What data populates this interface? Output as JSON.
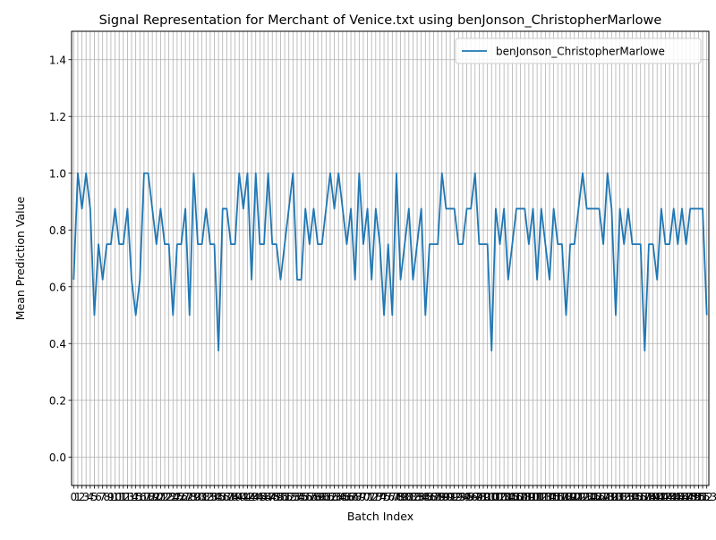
{
  "chart_data": {
    "type": "line",
    "title": "Signal Representation for Merchant of Venice.txt using benJonson_ChristopherMarlowe",
    "xlabel": "Batch Index",
    "ylabel": "Mean Prediction Value",
    "ylim": [
      -0.1,
      1.5
    ],
    "xlim": [
      -0.5,
      153.5
    ],
    "yticks": [
      "0.0",
      "0.2",
      "0.4",
      "0.6",
      "0.8",
      "1.0",
      "1.2",
      "1.4"
    ],
    "ytick_values": [
      0.0,
      0.2,
      0.4,
      0.6,
      0.8,
      1.0,
      1.2,
      1.4
    ],
    "grid": true,
    "legend_position": "top-right",
    "line_color": "#1f77b4",
    "series": [
      {
        "name": "benJonson_ChristopherMarlowe",
        "values": [
          0.625,
          1.0,
          0.875,
          1.0,
          0.875,
          0.5,
          0.75,
          0.625,
          0.75,
          0.75,
          0.875,
          0.75,
          0.75,
          0.875,
          0.625,
          0.5,
          0.625,
          1.0,
          1.0,
          0.875,
          0.75,
          0.875,
          0.75,
          0.75,
          0.5,
          0.75,
          0.75,
          0.875,
          0.5,
          1.0,
          0.75,
          0.75,
          0.875,
          0.75,
          0.75,
          0.375,
          0.875,
          0.875,
          0.75,
          0.75,
          1.0,
          0.875,
          1.0,
          0.625,
          1.0,
          0.75,
          0.75,
          1.0,
          0.75,
          0.75,
          0.625,
          0.75,
          0.875,
          1.0,
          0.625,
          0.625,
          0.875,
          0.75,
          0.875,
          0.75,
          0.75,
          0.875,
          1.0,
          0.875,
          1.0,
          0.875,
          0.75,
          0.875,
          0.625,
          1.0,
          0.75,
          0.875,
          0.625,
          0.875,
          0.75,
          0.5,
          0.75,
          0.5,
          1.0,
          0.625,
          0.75,
          0.875,
          0.625,
          0.75,
          0.875,
          0.5,
          0.75,
          0.75,
          0.75,
          1.0,
          0.875,
          0.875,
          0.875,
          0.75,
          0.75,
          0.875,
          0.875,
          1.0,
          0.75,
          0.75,
          0.75,
          0.375,
          0.875,
          0.75,
          0.875,
          0.625,
          0.75,
          0.875,
          0.875,
          0.875,
          0.75,
          0.875,
          0.625,
          0.875,
          0.75,
          0.625,
          0.875,
          0.75,
          0.75,
          0.5,
          0.75,
          0.75,
          0.875,
          1.0,
          0.875,
          0.875,
          0.875,
          0.875,
          0.75,
          1.0,
          0.875,
          0.5,
          0.875,
          0.75,
          0.875,
          0.75,
          0.75,
          0.75,
          0.375,
          0.75,
          0.75,
          0.625,
          0.875,
          0.75,
          0.75,
          0.875,
          0.75,
          0.875,
          0.75,
          0.875,
          0.875,
          0.875,
          0.875,
          0.5
        ]
      }
    ],
    "xtick_labels": [
      "0",
      "1",
      "2",
      "3",
      "4",
      "5",
      "6",
      "7",
      "8",
      "9",
      "10",
      "11",
      "12",
      "13",
      "14",
      "15",
      "16",
      "17",
      "18",
      "19",
      "20",
      "21",
      "22",
      "23",
      "24",
      "25",
      "26",
      "27",
      "28",
      "29",
      "30",
      "31",
      "32",
      "33",
      "34",
      "35",
      "36",
      "37",
      "38",
      "39",
      "40",
      "41",
      "42",
      "43",
      "44",
      "45",
      "46",
      "47",
      "48",
      "49",
      "50",
      "51",
      "52",
      "53",
      "54",
      "55",
      "56",
      "57",
      "58",
      "59",
      "60",
      "61",
      "62",
      "63",
      "64",
      "65",
      "66",
      "67",
      "68",
      "69",
      "70",
      "71",
      "72",
      "73",
      "74",
      "75",
      "76",
      "77",
      "78",
      "79",
      "80",
      "81",
      "82",
      "83",
      "84",
      "85",
      "86",
      "87",
      "88",
      "89",
      "90",
      "91",
      "92",
      "93",
      "94",
      "95",
      "96",
      "97",
      "98",
      "99",
      "100",
      "101",
      "102",
      "103",
      "104",
      "105",
      "106",
      "107",
      "108",
      "109",
      "110",
      "111",
      "112",
      "113",
      "114",
      "115",
      "116",
      "117",
      "118",
      "119",
      "120",
      "121",
      "122",
      "123",
      "124",
      "125",
      "126",
      "127",
      "128",
      "129",
      "130",
      "131",
      "132",
      "133",
      "134",
      "135",
      "136",
      "137",
      "138",
      "139",
      "140",
      "141",
      "142",
      "143",
      "144",
      "145",
      "146",
      "147",
      "148",
      "149",
      "150",
      "151",
      "152",
      "153"
    ]
  }
}
